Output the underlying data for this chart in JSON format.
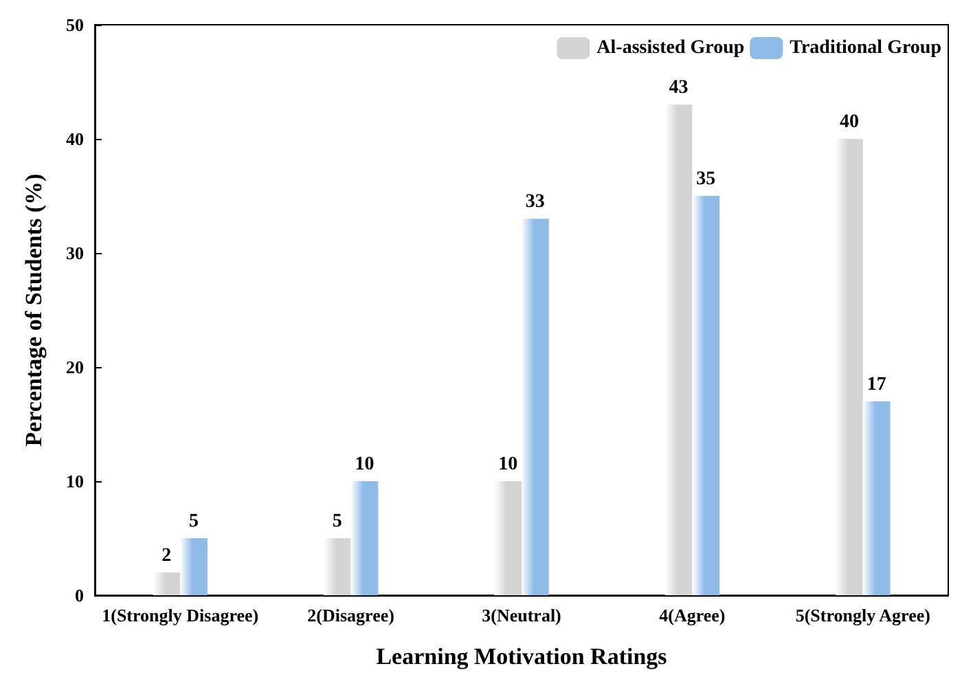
{
  "chart_data": {
    "type": "bar",
    "xlabel": "Learning Motivation Ratings",
    "ylabel": "Percentage of Students (%)",
    "categories": [
      "1(Strongly Disagree)",
      "2(Disagree)",
      "3(Neutral)",
      "4(Agree)",
      "5(Strongly Agree)"
    ],
    "series": [
      {
        "name": "Al-assisted Group",
        "color": "#d4d4d4",
        "values": [
          2,
          5,
          10,
          43,
          40
        ]
      },
      {
        "name": "Traditional Group",
        "color": "#8fbbe8",
        "values": [
          5,
          10,
          33,
          35,
          17
        ]
      }
    ],
    "ylim": [
      0,
      50
    ],
    "yticks": [
      0,
      10,
      20,
      30,
      40,
      50
    ],
    "data_labels": true,
    "grid": false,
    "legend": "top right"
  }
}
